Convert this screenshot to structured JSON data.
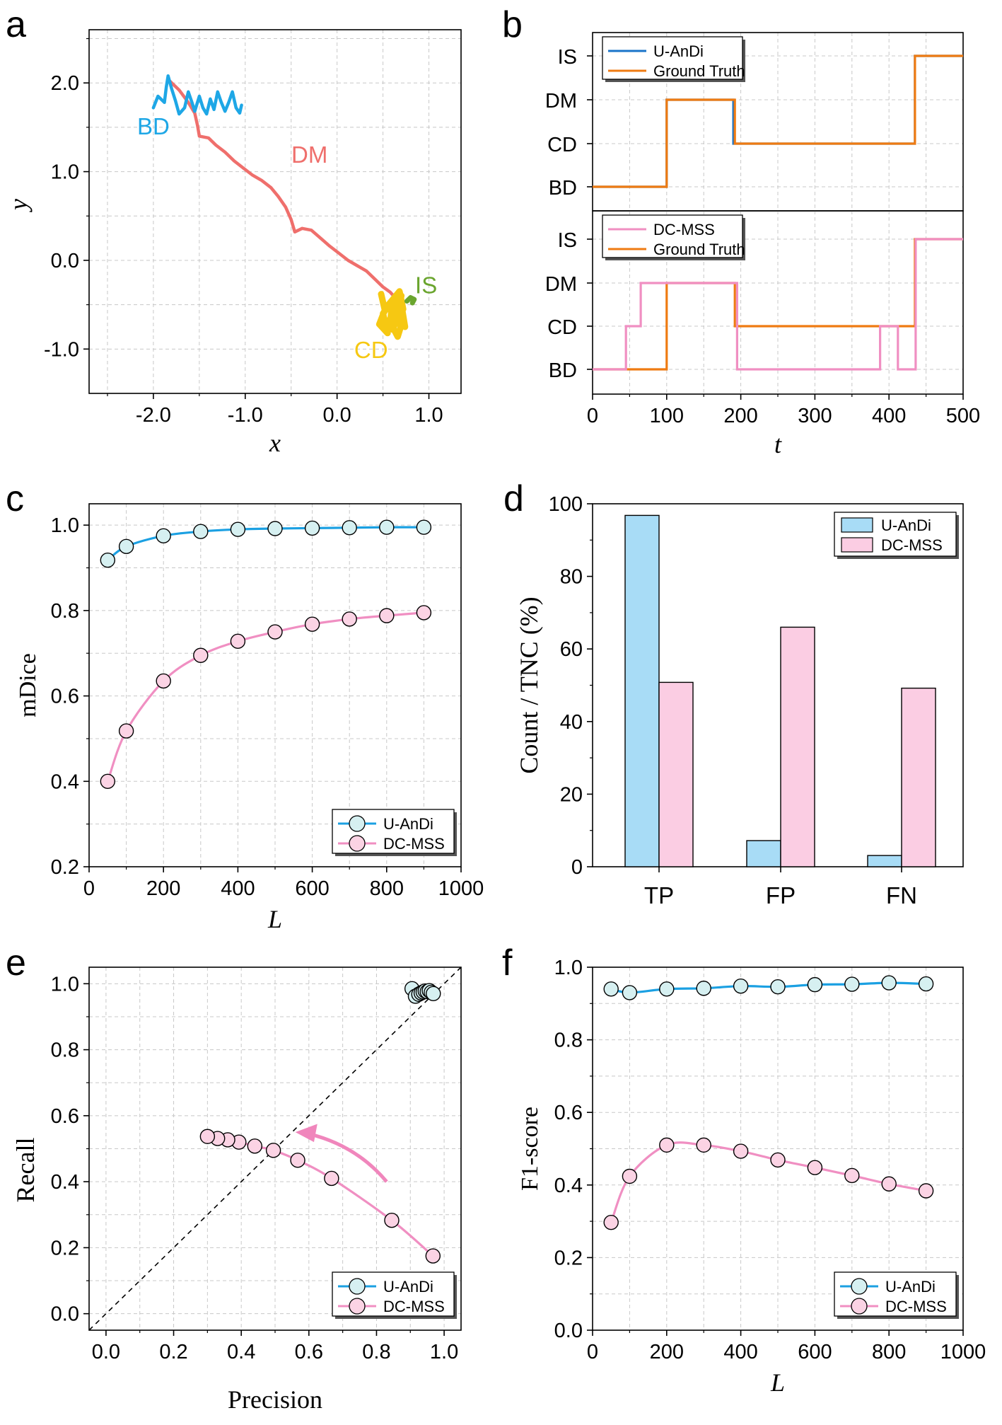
{
  "colors": {
    "uandi": "#1ba0e2",
    "uandi_line": "#1a74c9",
    "dcmss": "#f08fc2",
    "dcmss_fill": "#f9cbe4",
    "gt": "#ef7b12",
    "bd": "#1ea7e6",
    "dm": "#ef6f6c",
    "cd": "#f6c812",
    "is": "#6aa52e",
    "uandi_bar": "#a8dcf6",
    "dcmss_bar": "#fbcde3",
    "marker_face_u": "#d6f0f1",
    "marker_face_d": "#fbd3e4",
    "arrow": "#f086bc",
    "grid": "#c8c8c8"
  },
  "chart_data": [
    {
      "panel": "a",
      "type": "line",
      "xlabel": "x",
      "ylabel": "y",
      "xlim": [
        -2.7,
        1.35
      ],
      "ylim": [
        -1.5,
        2.6
      ],
      "xticks": [
        "-2.0",
        "-1.0",
        "0.0",
        "1.0"
      ],
      "xtick_values": [
        -2.0,
        -1.0,
        0.0,
        1.0
      ],
      "yticks": [
        "-1.0",
        "0.0",
        "1.0",
        "2.0"
      ],
      "ytick_values": [
        -1.0,
        0.0,
        1.0,
        2.0
      ],
      "region_labels": [
        {
          "text": "BD",
          "x": -2.0,
          "y": 1.42,
          "color": "bd"
        },
        {
          "text": "DM",
          "x": -0.3,
          "y": 1.1,
          "color": "dm"
        },
        {
          "text": "IS",
          "x": 0.97,
          "y": -0.37,
          "color": "is"
        },
        {
          "text": "CD",
          "x": 0.37,
          "y": -1.1,
          "color": "cd"
        }
      ],
      "segments": {
        "BD": [
          [
            -2.0,
            1.72
          ],
          [
            -1.95,
            1.85
          ],
          [
            -1.88,
            1.78
          ],
          [
            -1.86,
            1.95
          ],
          [
            -1.84,
            2.08
          ],
          [
            -1.8,
            1.93
          ],
          [
            -1.76,
            1.8
          ],
          [
            -1.72,
            1.65
          ],
          [
            -1.66,
            1.72
          ],
          [
            -1.62,
            1.9
          ],
          [
            -1.58,
            1.78
          ],
          [
            -1.55,
            1.68
          ],
          [
            -1.5,
            1.85
          ],
          [
            -1.46,
            1.72
          ],
          [
            -1.42,
            1.65
          ],
          [
            -1.38,
            1.82
          ],
          [
            -1.34,
            1.7
          ],
          [
            -1.3,
            1.9
          ],
          [
            -1.26,
            1.78
          ],
          [
            -1.22,
            1.68
          ],
          [
            -1.18,
            1.78
          ],
          [
            -1.14,
            1.9
          ],
          [
            -1.1,
            1.72
          ],
          [
            -1.06,
            1.66
          ],
          [
            -1.04,
            1.75
          ]
        ],
        "DM": [
          [
            -1.82,
            2.02
          ],
          [
            -1.72,
            1.92
          ],
          [
            -1.62,
            1.78
          ],
          [
            -1.55,
            1.66
          ],
          [
            -1.52,
            1.52
          ],
          [
            -1.5,
            1.4
          ],
          [
            -1.4,
            1.38
          ],
          [
            -1.32,
            1.3
          ],
          [
            -1.22,
            1.22
          ],
          [
            -1.12,
            1.12
          ],
          [
            -1.02,
            1.04
          ],
          [
            -0.92,
            0.96
          ],
          [
            -0.82,
            0.9
          ],
          [
            -0.72,
            0.82
          ],
          [
            -0.64,
            0.72
          ],
          [
            -0.56,
            0.6
          ],
          [
            -0.5,
            0.46
          ],
          [
            -0.46,
            0.32
          ],
          [
            -0.38,
            0.36
          ],
          [
            -0.28,
            0.34
          ],
          [
            -0.18,
            0.25
          ],
          [
            -0.08,
            0.16
          ],
          [
            0.02,
            0.08
          ],
          [
            0.12,
            0.0
          ],
          [
            0.22,
            -0.06
          ],
          [
            0.32,
            -0.12
          ],
          [
            0.42,
            -0.22
          ],
          [
            0.5,
            -0.3
          ],
          [
            0.58,
            -0.36
          ],
          [
            0.65,
            -0.44
          ],
          [
            0.7,
            -0.5
          ]
        ],
        "CD": [
          [
            0.48,
            -0.38
          ],
          [
            0.52,
            -0.56
          ],
          [
            0.46,
            -0.72
          ],
          [
            0.55,
            -0.82
          ],
          [
            0.5,
            -0.6
          ],
          [
            0.6,
            -0.45
          ],
          [
            0.58,
            -0.7
          ],
          [
            0.66,
            -0.86
          ],
          [
            0.72,
            -0.66
          ],
          [
            0.62,
            -0.55
          ],
          [
            0.7,
            -0.4
          ],
          [
            0.66,
            -0.58
          ],
          [
            0.54,
            -0.7
          ],
          [
            0.6,
            -0.78
          ],
          [
            0.72,
            -0.55
          ],
          [
            0.68,
            -0.35
          ],
          [
            0.56,
            -0.5
          ],
          [
            0.62,
            -0.65
          ],
          [
            0.74,
            -0.75
          ],
          [
            0.7,
            -0.5
          ]
        ],
        "IS": [
          [
            0.76,
            -0.46
          ],
          [
            0.8,
            -0.42
          ],
          [
            0.84,
            -0.44
          ],
          [
            0.82,
            -0.48
          ]
        ]
      }
    },
    {
      "panel": "b",
      "type": "line",
      "xlabel": "t",
      "xlim": [
        0,
        500
      ],
      "xticks": [
        "0",
        "100",
        "200",
        "300",
        "400",
        "500"
      ],
      "xtick_values": [
        0,
        100,
        200,
        300,
        400,
        500
      ],
      "states": [
        "BD",
        "CD",
        "DM",
        "IS"
      ],
      "top": {
        "legend": [
          "U-AnDi",
          "Ground Truth"
        ],
        "series": [
          {
            "name": "U-AnDi",
            "color": "uandi_line",
            "steps": [
              [
                0,
                0
              ],
              [
                100,
                2
              ],
              [
                190,
                1
              ],
              [
                435,
                3
              ],
              [
                500,
                3
              ]
            ]
          },
          {
            "name": "Ground Truth",
            "color": "gt",
            "steps": [
              [
                0,
                0
              ],
              [
                100,
                2
              ],
              [
                192,
                1
              ],
              [
                435,
                3
              ],
              [
                500,
                3
              ]
            ]
          }
        ]
      },
      "bottom": {
        "legend": [
          "DC-MSS",
          "Ground Truth"
        ],
        "series": [
          {
            "name": "Ground Truth",
            "color": "gt",
            "steps": [
              [
                0,
                0
              ],
              [
                100,
                2
              ],
              [
                192,
                1
              ],
              [
                435,
                3
              ],
              [
                500,
                3
              ]
            ]
          },
          {
            "name": "DC-MSS",
            "color": "dcmss",
            "steps": [
              [
                0,
                0
              ],
              [
                45,
                1
              ],
              [
                65,
                2
              ],
              [
                195,
                0
              ],
              [
                388,
                1
              ],
              [
                412,
                0
              ],
              [
                436,
                3
              ],
              [
                500,
                3
              ]
            ]
          }
        ]
      }
    },
    {
      "panel": "c",
      "type": "line",
      "xlabel": "L",
      "ylabel": "mDice",
      "xlim": [
        0,
        1000
      ],
      "ylim": [
        0.2,
        1.05
      ],
      "xticks": [
        "0",
        "200",
        "400",
        "600",
        "800",
        "1000"
      ],
      "xtick_values": [
        0,
        200,
        400,
        600,
        800,
        1000
      ],
      "yticks": [
        "0.2",
        "0.4",
        "0.6",
        "0.8",
        "1.0"
      ],
      "ytick_values": [
        0.2,
        0.4,
        0.6,
        0.8,
        1.0
      ],
      "x": [
        50,
        100,
        200,
        300,
        400,
        500,
        600,
        700,
        800,
        900
      ],
      "series": [
        {
          "name": "U-AnDi",
          "values": [
            0.918,
            0.95,
            0.975,
            0.985,
            0.99,
            0.992,
            0.993,
            0.994,
            0.995,
            0.995
          ]
        },
        {
          "name": "DC-MSS",
          "values": [
            0.4,
            0.518,
            0.635,
            0.695,
            0.728,
            0.75,
            0.768,
            0.78,
            0.788,
            0.795
          ]
        }
      ]
    },
    {
      "panel": "d",
      "type": "bar",
      "ylabel": "Count / TNC  (%)",
      "ylim": [
        0,
        100
      ],
      "yticks": [
        "0",
        "20",
        "40",
        "60",
        "80",
        "100"
      ],
      "ytick_values": [
        0,
        20,
        40,
        60,
        80,
        100
      ],
      "categories": [
        "TP",
        "FP",
        "FN"
      ],
      "series": [
        {
          "name": "U-AnDi",
          "values": [
            96.8,
            7.2,
            3.1
          ]
        },
        {
          "name": "DC-MSS",
          "values": [
            50.8,
            66.0,
            49.2
          ]
        }
      ]
    },
    {
      "panel": "e",
      "type": "scatter",
      "xlabel": "Precision",
      "ylabel": "Recall",
      "xlim": [
        -0.05,
        1.05
      ],
      "ylim": [
        -0.05,
        1.05
      ],
      "xticks": [
        "0.0",
        "0.2",
        "0.4",
        "0.6",
        "0.8",
        "1.0"
      ],
      "xtick_values": [
        0.0,
        0.2,
        0.4,
        0.6,
        0.8,
        1.0
      ],
      "yticks": [
        "0.0",
        "0.2",
        "0.4",
        "0.6",
        "0.8",
        "1.0"
      ],
      "ytick_values": [
        0.0,
        0.2,
        0.4,
        0.6,
        0.8,
        1.0
      ],
      "series": [
        {
          "name": "U-AnDi",
          "points": [
            [
              0.905,
              0.985
            ],
            [
              0.915,
              0.962
            ],
            [
              0.925,
              0.968
            ],
            [
              0.932,
              0.972
            ],
            [
              0.938,
              0.975
            ],
            [
              0.944,
              0.978
            ],
            [
              0.95,
              0.976
            ],
            [
              0.956,
              0.979
            ],
            [
              0.962,
              0.974
            ],
            [
              0.968,
              0.97
            ]
          ]
        },
        {
          "name": "DC-MSS",
          "points": [
            [
              0.967,
              0.175
            ],
            [
              0.845,
              0.283
            ],
            [
              0.667,
              0.41
            ],
            [
              0.567,
              0.465
            ],
            [
              0.495,
              0.495
            ],
            [
              0.44,
              0.508
            ],
            [
              0.393,
              0.52
            ],
            [
              0.36,
              0.527
            ],
            [
              0.33,
              0.531
            ],
            [
              0.3,
              0.537
            ]
          ]
        }
      ]
    },
    {
      "panel": "f",
      "type": "line",
      "xlabel": "L",
      "ylabel": "F1-score",
      "xlim": [
        0,
        1000
      ],
      "ylim": [
        0.0,
        1.0
      ],
      "xticks": [
        "0",
        "200",
        "400",
        "600",
        "800",
        "1000"
      ],
      "xtick_values": [
        0,
        200,
        400,
        600,
        800,
        1000
      ],
      "yticks": [
        "0.0",
        "0.2",
        "0.4",
        "0.6",
        "0.8",
        "1.0"
      ],
      "ytick_values": [
        0.0,
        0.2,
        0.4,
        0.6,
        0.8,
        1.0
      ],
      "x": [
        50,
        100,
        200,
        300,
        400,
        500,
        600,
        700,
        800,
        900
      ],
      "series": [
        {
          "name": "U-AnDi",
          "values": [
            0.94,
            0.93,
            0.94,
            0.942,
            0.948,
            0.946,
            0.952,
            0.953,
            0.957,
            0.954
          ]
        },
        {
          "name": "DC-MSS",
          "values": [
            0.297,
            0.424,
            0.51,
            0.51,
            0.493,
            0.469,
            0.448,
            0.426,
            0.403,
            0.384
          ]
        }
      ]
    }
  ],
  "panel_labels": [
    "a",
    "b",
    "c",
    "d",
    "e",
    "f"
  ]
}
